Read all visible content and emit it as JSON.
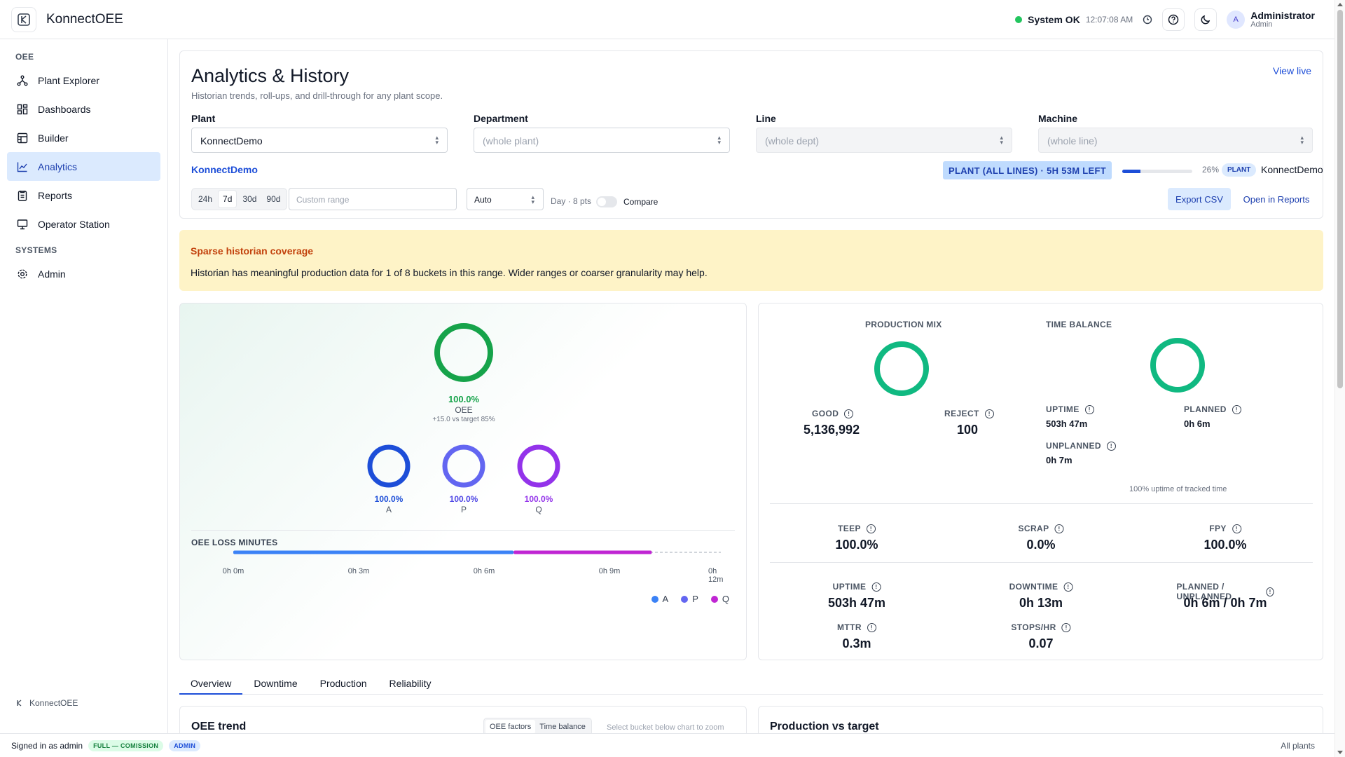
{
  "app": {
    "name": "KonnectOEE"
  },
  "topbar": {
    "status": "System OK",
    "time": "12:07:08 AM",
    "user_initial": "A",
    "user_name": "Administrator",
    "user_role": "Admin"
  },
  "sidebar": {
    "section_oee": "OEE",
    "section_systems": "SYSTEMS",
    "items": [
      {
        "label": "Plant Explorer",
        "icon": "tree-icon"
      },
      {
        "label": "Dashboards",
        "icon": "grid-icon"
      },
      {
        "label": "Builder",
        "icon": "builder-icon"
      },
      {
        "label": "Analytics",
        "icon": "chart-icon"
      },
      {
        "label": "Reports",
        "icon": "report-icon"
      },
      {
        "label": "Operator Station",
        "icon": "monitor-icon"
      }
    ],
    "admin_label": "Admin",
    "footer_brand": "KonnectOEE"
  },
  "footer": {
    "signed_in": "Signed in as admin",
    "license_badge": "FULL — COMISSION",
    "role_badge": "ADMIN",
    "scope": "All plants"
  },
  "header": {
    "title": "Analytics & History",
    "subtitle": "Historian trends, roll-ups, and drill-through for any plant scope.",
    "view_live": "View live",
    "filters": {
      "plant_label": "Plant",
      "plant_value": "KonnectDemo",
      "department_label": "Department",
      "department_value": "(whole plant)",
      "line_label": "Line",
      "line_value": "(whole dept)",
      "machine_label": "Machine",
      "machine_value": "(whole line)"
    },
    "scope_link": "KonnectDemo",
    "scope_badge": "PLANT (ALL LINES) · 5H 53M LEFT",
    "progress_fraction": 0.26,
    "progress_pct": "26%",
    "plant_tag": "PLANT",
    "plant_tag_name": "KonnectDemo",
    "ranges": [
      "24h",
      "7d",
      "30d",
      "90d"
    ],
    "active_range": "7d",
    "custom_range_placeholder": "Custom range",
    "granularity": "Auto",
    "granularity_note": "Day · 8 pts",
    "compare_label": "Compare",
    "export_label": "Export CSV",
    "reports_label": "Open in Reports"
  },
  "warning": {
    "title": "Sparse historian coverage",
    "body": "Historian has meaningful production data for 1 of 8 buckets in this range. Wider ranges or coarser granularity may help."
  },
  "oee": {
    "value": "100.0%",
    "label": "OEE",
    "target_note": "+15.0 vs target 85%",
    "factors": [
      {
        "pct": "100.0%",
        "name": "A",
        "color": "#1d4ed8"
      },
      {
        "pct": "100.0%",
        "name": "P",
        "color": "#6366f1"
      },
      {
        "pct": "100.0%",
        "name": "Q",
        "color": "#9333ea"
      }
    ],
    "loss_title": "OEE LOSS MINUTES",
    "ticks": [
      "0h 0m",
      "0h 3m",
      "0h 6m",
      "0h 9m",
      "0h 12m"
    ],
    "loss_segments": [
      {
        "name": "A",
        "minutes": 6.9,
        "color": "#3b82f6"
      },
      {
        "name": "Q",
        "minutes": 3.4,
        "color": "#c026d3"
      }
    ],
    "loss_scale_max_minutes": 12,
    "legend": [
      {
        "name": "A",
        "color": "#3b82f6"
      },
      {
        "name": "P",
        "color": "#6366f1"
      },
      {
        "name": "Q",
        "color": "#c026d3"
      }
    ]
  },
  "metrics": {
    "production_mix_label": "PRODUCTION MIX",
    "time_balance_label": "TIME BALANCE",
    "good_label": "GOOD",
    "good_value": "5,136,992",
    "reject_label": "REJECT",
    "reject_value": "100",
    "uptime_label": "UPTIME",
    "uptime_value": "503h 47m",
    "planned_label": "PLANNED",
    "planned_value": "0h 6m",
    "unplanned_label": "UNPLANNED",
    "unplanned_value": "0h 7m",
    "uptime_note": "100% uptime of tracked time",
    "teep_label": "TEEP",
    "teep_value": "100.0%",
    "scrap_label": "SCRAP",
    "scrap_value": "0.0%",
    "fpy_label": "FPY",
    "fpy_value": "100.0%",
    "uptime2_label": "UPTIME",
    "uptime2_value": "503h 47m",
    "downtime_label": "DOWNTIME",
    "downtime_value": "0h 13m",
    "pu_label": "PLANNED / UNPLANNED",
    "pu_value": "0h 6m / 0h 7m",
    "mttr_label": "MTTR",
    "mttr_value": "0.3m",
    "stops_label": "STOPS/HR",
    "stops_value": "0.07"
  },
  "tabs": [
    "Overview",
    "Downtime",
    "Production",
    "Reliability"
  ],
  "bottom": {
    "trend_title": "OEE trend",
    "seg_factors": "OEE factors",
    "seg_balance": "Time balance",
    "seg_hint": "Select bucket below chart to zoom",
    "production_title": "Production vs target"
  }
}
